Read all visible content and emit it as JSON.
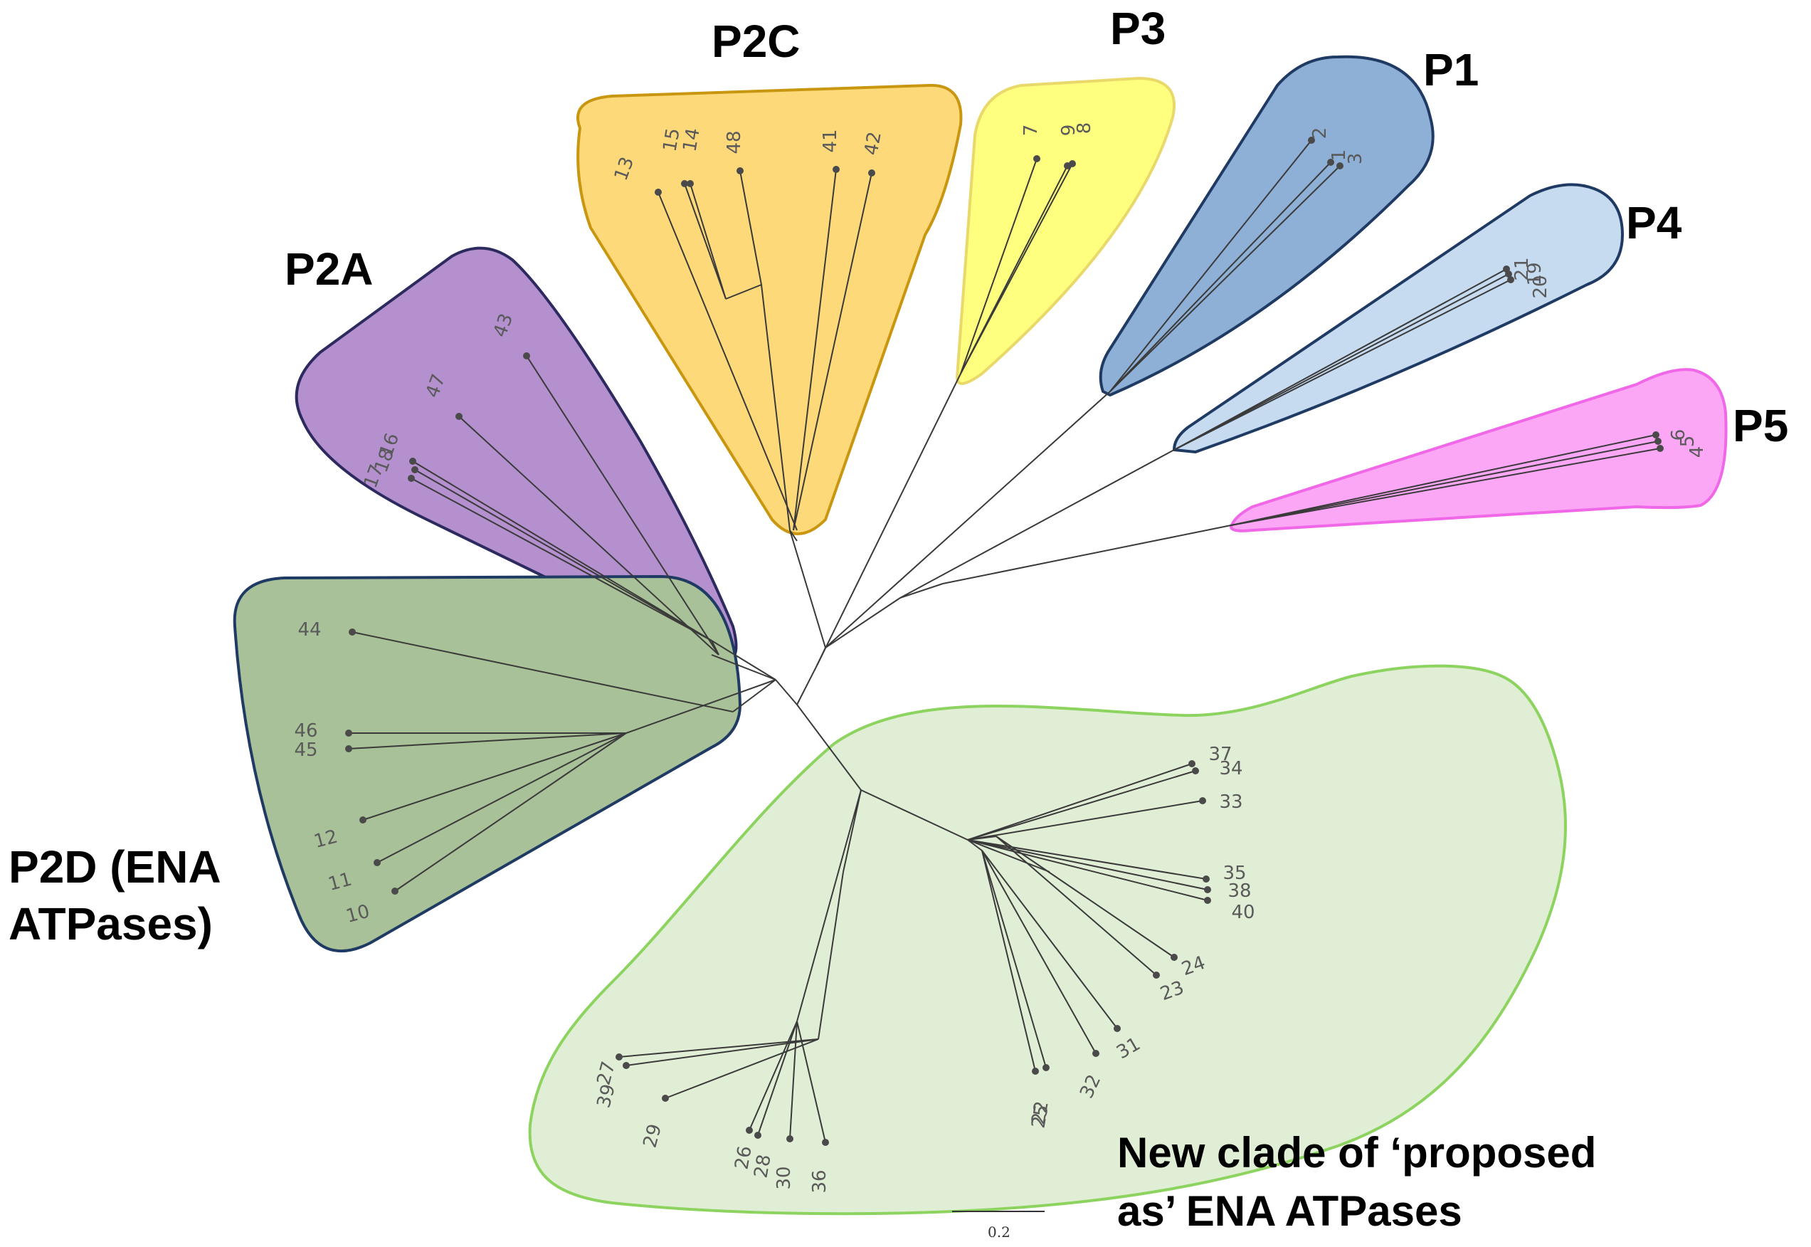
{
  "clades": [
    {
      "id": "p2c",
      "label": "P2C",
      "fill": "#fdd97a",
      "stroke": "#c9960f"
    },
    {
      "id": "p3",
      "label": "P3",
      "fill": "#ffff7f",
      "stroke": "#e8d96a"
    },
    {
      "id": "p1",
      "label": "P1",
      "fill": "#8fb0d6",
      "stroke": "#1f3a63"
    },
    {
      "id": "p4",
      "label": "P4",
      "fill": "#c6daf0",
      "stroke": "#1f3a63"
    },
    {
      "id": "p5",
      "label": "P5",
      "fill": "#fca7f5",
      "stroke": "#f067e8"
    },
    {
      "id": "p2a",
      "label": "P2A",
      "fill": "#b490cf",
      "stroke": "#2c2a5e"
    },
    {
      "id": "p2d",
      "label_line1": "P2D (ENA",
      "label_line2": "ATPases)",
      "fill": "#a8c198",
      "stroke": "#1f3a63"
    },
    {
      "id": "new",
      "label_line1": "New clade of ‘proposed",
      "label_line2": "as’ ENA ATPases",
      "fill": "#e1eed6",
      "stroke": "#8dd35f"
    }
  ],
  "leaves": [
    "13",
    "15",
    "14",
    "48",
    "41",
    "42",
    "7",
    "9",
    "8",
    "2",
    "1",
    "3",
    "21",
    "19",
    "20",
    "6",
    "5",
    "4",
    "43",
    "47",
    "16",
    "18",
    "17",
    "44",
    "46",
    "45",
    "12",
    "11",
    "10",
    "37",
    "34",
    "33",
    "35",
    "38",
    "40",
    "24",
    "23",
    "31",
    "32",
    "22",
    "25",
    "27",
    "39",
    "29",
    "26",
    "28",
    "30",
    "36"
  ],
  "scale_bar": {
    "label": "0.2"
  }
}
